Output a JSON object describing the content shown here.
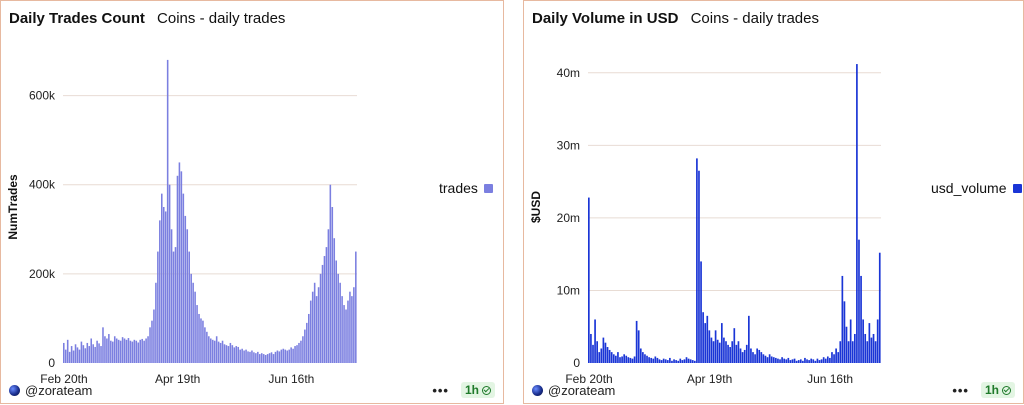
{
  "charts": [
    {
      "title": "Daily Trades Count",
      "subtitle": "Coins - daily trades",
      "legend_label": "trades",
      "author": "@zorateam",
      "refresh_label": "1h",
      "color": "#7b7fe0"
    },
    {
      "title": "Daily Volume in USD",
      "subtitle": "Coins - daily trades",
      "legend_label": "usd_volume",
      "author": "@zorateam",
      "refresh_label": "1h",
      "color": "#1a35d6"
    }
  ],
  "chart_data": [
    {
      "type": "bar",
      "title": "Daily Trades Count",
      "subtitle": "Coins - daily trades",
      "ylabel": "NumTrades",
      "xlabel": "",
      "ylim": [
        0,
        700000
      ],
      "yticks": [
        0,
        200000,
        400000,
        600000
      ],
      "ytick_labels": [
        "0",
        "200k",
        "400k",
        "600k"
      ],
      "xtick_labels": [
        "Feb 20th",
        "Apr 19th",
        "Jun 16th"
      ],
      "xtick_indices": [
        0,
        58,
        116
      ],
      "grid": true,
      "legend_position": "right",
      "series": [
        {
          "name": "trades",
          "values": [
            45000,
            30000,
            52000,
            25000,
            38000,
            28000,
            42000,
            35000,
            30000,
            48000,
            40000,
            33000,
            45000,
            38000,
            55000,
            42000,
            36000,
            50000,
            44000,
            38000,
            80000,
            60000,
            55000,
            65000,
            50000,
            48000,
            60000,
            55000,
            52000,
            50000,
            58000,
            55000,
            52000,
            56000,
            50000,
            48000,
            52000,
            50000,
            46000,
            52000,
            54000,
            50000,
            55000,
            60000,
            80000,
            95000,
            120000,
            180000,
            250000,
            320000,
            380000,
            350000,
            340000,
            680000,
            400000,
            300000,
            250000,
            260000,
            420000,
            450000,
            430000,
            380000,
            330000,
            300000,
            250000,
            200000,
            180000,
            160000,
            130000,
            110000,
            100000,
            95000,
            80000,
            70000,
            60000,
            55000,
            52000,
            50000,
            60000,
            48000,
            45000,
            50000,
            42000,
            40000,
            38000,
            45000,
            40000,
            35000,
            38000,
            36000,
            30000,
            32000,
            28000,
            30000,
            26000,
            25000,
            28000,
            24000,
            22000,
            25000,
            20000,
            22000,
            20000,
            18000,
            20000,
            22000,
            24000,
            20000,
            25000,
            28000,
            26000,
            30000,
            32000,
            30000,
            28000,
            30000,
            35000,
            32000,
            38000,
            40000,
            45000,
            50000,
            60000,
            75000,
            90000,
            110000,
            140000,
            160000,
            180000,
            150000,
            170000,
            200000,
            220000,
            240000,
            260000,
            300000,
            400000,
            350000,
            280000,
            230000,
            200000,
            180000,
            150000,
            130000,
            120000,
            140000,
            160000,
            150000,
            170000,
            250000
          ]
        }
      ]
    },
    {
      "type": "bar",
      "title": "Daily Volume in USD",
      "subtitle": "Coins - daily trades",
      "ylabel": "$USD",
      "xlabel": "",
      "ylim": [
        0,
        43000000
      ],
      "yticks": [
        0,
        10000000,
        20000000,
        30000000,
        40000000
      ],
      "ytick_labels": [
        "0",
        "10m",
        "20m",
        "30m",
        "40m"
      ],
      "xtick_labels": [
        "Feb 20th",
        "Apr 19th",
        "Jun 16th"
      ],
      "xtick_indices": [
        0,
        58,
        116
      ],
      "grid": true,
      "legend_position": "right",
      "series": [
        {
          "name": "usd_volume",
          "values": [
            22800000,
            4000000,
            2500000,
            6000000,
            3000000,
            1500000,
            2000000,
            3500000,
            2800000,
            2200000,
            1800000,
            1500000,
            1200000,
            1000000,
            1500000,
            800000,
            900000,
            1200000,
            1000000,
            800000,
            700000,
            600000,
            900000,
            5800000,
            4500000,
            2000000,
            1500000,
            1200000,
            1000000,
            800000,
            700000,
            600000,
            900000,
            700000,
            500000,
            400000,
            600000,
            500000,
            400000,
            700000,
            300000,
            500000,
            400000,
            300000,
            600000,
            400000,
            500000,
            800000,
            600000,
            500000,
            400000,
            300000,
            28200000,
            26500000,
            14000000,
            7000000,
            5500000,
            6500000,
            4500000,
            3500000,
            3000000,
            4500000,
            3200000,
            2800000,
            5500000,
            3500000,
            3000000,
            2500000,
            2200000,
            3000000,
            4800000,
            2500000,
            3000000,
            2000000,
            1500000,
            1800000,
            2500000,
            6500000,
            2000000,
            1500000,
            1200000,
            2000000,
            1800000,
            1500000,
            1200000,
            1000000,
            800000,
            1200000,
            900000,
            800000,
            700000,
            600000,
            500000,
            800000,
            600000,
            500000,
            700000,
            400000,
            500000,
            600000,
            300000,
            400000,
            500000,
            300000,
            700000,
            500000,
            400000,
            600000,
            500000,
            300000,
            600000,
            400000,
            500000,
            800000,
            600000,
            900000,
            700000,
            1500000,
            1200000,
            2000000,
            1500000,
            3000000,
            12000000,
            8500000,
            5000000,
            3000000,
            6000000,
            3000000,
            4000000,
            41200000,
            17000000,
            12000000,
            6000000,
            4000000,
            3000000,
            5500000,
            3500000,
            4000000,
            3000000,
            6000000,
            15200000
          ]
        }
      ]
    }
  ]
}
